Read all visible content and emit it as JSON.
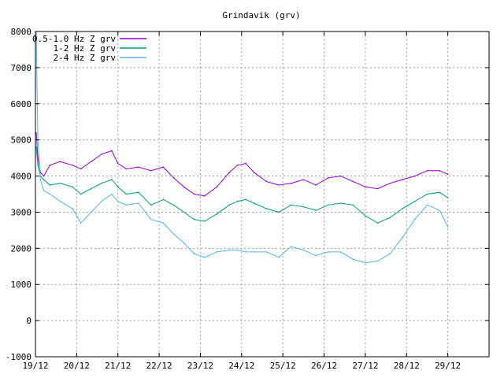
{
  "chart_data": {
    "type": "line",
    "title": "Grindavik (grv)",
    "xlabel": "",
    "ylabel": "",
    "ylim": [
      -1000,
      8000
    ],
    "yticks": [
      -1000,
      0,
      1000,
      2000,
      3000,
      4000,
      5000,
      6000,
      7000,
      8000
    ],
    "xlim": [
      0,
      11
    ],
    "xticks": [
      0,
      1,
      2,
      3,
      4,
      5,
      6,
      7,
      8,
      9,
      10
    ],
    "xtick_labels": [
      "19/12",
      "20/12",
      "21/12",
      "22/12",
      "23/12",
      "24/12",
      "25/12",
      "26/12",
      "27/12",
      "28/12",
      "29/12"
    ],
    "grid": true,
    "legend_position": "top-left",
    "series": [
      {
        "name": "0.5-1.0 Hz Z grv",
        "color": "#9400d3",
        "x": [
          0.02,
          0.06,
          0.12,
          0.2,
          0.35,
          0.6,
          0.9,
          1.1,
          1.35,
          1.6,
          1.85,
          2.0,
          2.2,
          2.5,
          2.8,
          3.1,
          3.35,
          3.6,
          3.85,
          4.1,
          4.4,
          4.7,
          4.9,
          5.1,
          5.3,
          5.6,
          5.9,
          6.2,
          6.5,
          6.8,
          7.1,
          7.4,
          7.7,
          8.0,
          8.3,
          8.6,
          8.9,
          9.2,
          9.5,
          9.8,
          10.0
        ],
        "values": [
          5200,
          4500,
          4100,
          4000,
          4300,
          4400,
          4300,
          4200,
          4400,
          4600,
          4700,
          4350,
          4200,
          4250,
          4150,
          4250,
          3950,
          3700,
          3500,
          3450,
          3700,
          4100,
          4300,
          4350,
          4100,
          3850,
          3750,
          3800,
          3900,
          3750,
          3950,
          4000,
          3850,
          3700,
          3650,
          3800,
          3900,
          4000,
          4150,
          4150,
          4050
        ]
      },
      {
        "name": "1-2 Hz Z grv",
        "color": "#009e73",
        "x": [
          0.02,
          0.06,
          0.12,
          0.2,
          0.35,
          0.6,
          0.9,
          1.1,
          1.35,
          1.6,
          1.85,
          2.0,
          2.2,
          2.5,
          2.8,
          3.1,
          3.35,
          3.6,
          3.85,
          4.1,
          4.4,
          4.7,
          4.9,
          5.1,
          5.3,
          5.6,
          5.9,
          6.2,
          6.5,
          6.8,
          7.1,
          7.4,
          7.7,
          8.0,
          8.3,
          8.6,
          8.9,
          9.2,
          9.5,
          9.8,
          10.0
        ],
        "values": [
          4800,
          4300,
          4000,
          3900,
          3750,
          3800,
          3700,
          3500,
          3650,
          3800,
          3900,
          3700,
          3500,
          3550,
          3200,
          3350,
          3200,
          3000,
          2800,
          2750,
          2950,
          3200,
          3300,
          3350,
          3250,
          3100,
          3000,
          3200,
          3150,
          3050,
          3200,
          3250,
          3200,
          2900,
          2700,
          2850,
          3100,
          3300,
          3500,
          3550,
          3400
        ]
      },
      {
        "name": "2-4 Hz Z grv",
        "color": "#56b4e9",
        "x": [
          0.02,
          0.06,
          0.12,
          0.2,
          0.35,
          0.6,
          0.9,
          1.1,
          1.35,
          1.6,
          1.85,
          2.0,
          2.2,
          2.5,
          2.8,
          3.1,
          3.35,
          3.6,
          3.85,
          4.1,
          4.4,
          4.7,
          4.9,
          5.1,
          5.3,
          5.6,
          5.9,
          6.2,
          6.5,
          6.8,
          7.1,
          7.4,
          7.7,
          8.0,
          8.3,
          8.6,
          8.9,
          9.2,
          9.5,
          9.8,
          10.0
        ],
        "values": [
          8000,
          5000,
          3900,
          3600,
          3500,
          3300,
          3100,
          2700,
          3000,
          3300,
          3500,
          3300,
          3200,
          3250,
          2800,
          2700,
          2400,
          2150,
          1850,
          1750,
          1900,
          1950,
          1950,
          1900,
          1900,
          1900,
          1750,
          2050,
          1950,
          1800,
          1900,
          1900,
          1700,
          1600,
          1650,
          1850,
          2300,
          2800,
          3200,
          3050,
          2600
        ]
      }
    ]
  }
}
